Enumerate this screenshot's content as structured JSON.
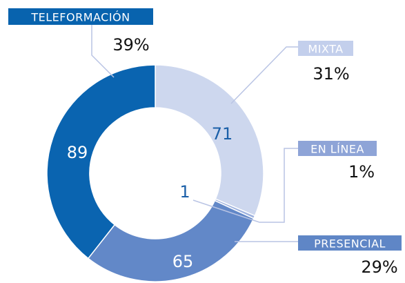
{
  "chart_data": {
    "type": "donut",
    "categories": [
      "MIXTA",
      "EN LÍNEA",
      "PRESENCIAL",
      "TELEFORMACIÓN"
    ],
    "values": [
      71,
      1,
      65,
      89
    ],
    "percent_labels": [
      "31%",
      "1%",
      "29%",
      "39%"
    ],
    "colors": [
      "#cdd7ee",
      "#9fb3df",
      "#6288c8",
      "#0a64b0"
    ],
    "label_colors": [
      "#c3cfec",
      "#8ea4d7",
      "#5f86c6",
      "#0863ae"
    ]
  }
}
